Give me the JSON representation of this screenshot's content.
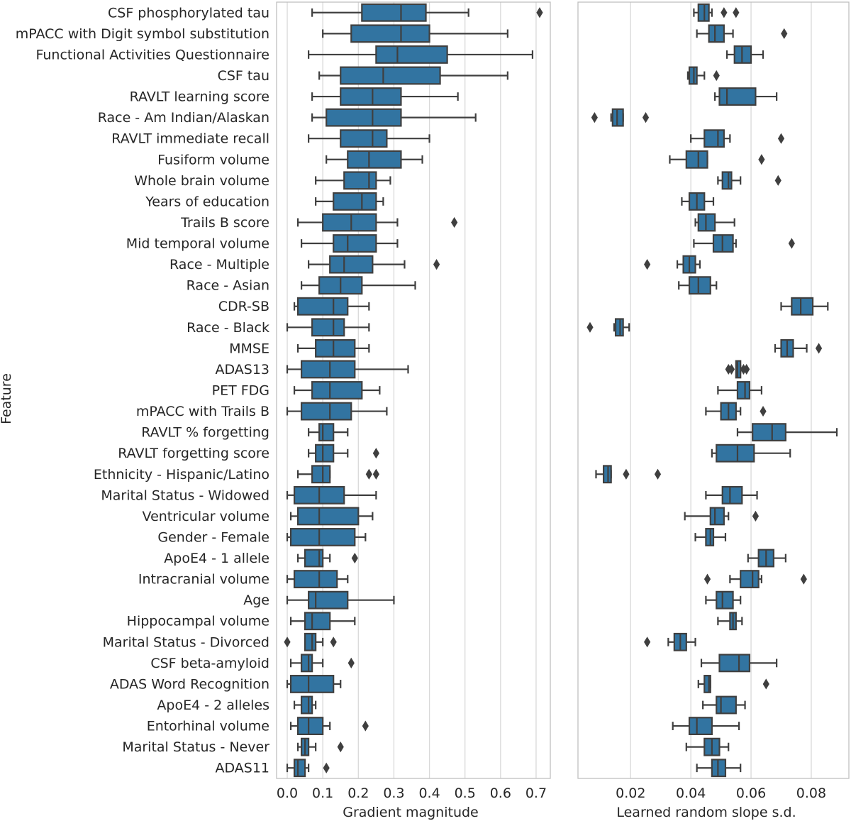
{
  "chart_data": {
    "type": "box",
    "ylabel": "Feature",
    "features": [
      "CSF phosphorylated tau",
      "mPACC with Digit symbol substitution",
      "Functional Activities Questionnaire",
      "CSF tau",
      "RAVLT learning score",
      "Race - Am Indian/Alaskan",
      "RAVLT immediate recall",
      "Fusiform volume",
      "Whole brain volume",
      "Years of education",
      "Trails B score",
      "Mid temporal volume",
      "Race - Multiple",
      "Race - Asian",
      "CDR-SB",
      "Race - Black",
      "MMSE",
      "ADAS13",
      "PET FDG",
      "mPACC with Trails B",
      "RAVLT % forgetting",
      "RAVLT forgetting score",
      "Ethnicity - Hispanic/Latino",
      "Marital Status - Widowed",
      "Ventricular volume",
      "Gender - Female",
      "ApoE4 - 1 allele",
      "Intracranial volume",
      "Age",
      "Hippocampal volume",
      "Marital Status - Divorced",
      "CSF beta-amyloid",
      "ADAS Word Recognition",
      "ApoE4 - 2 alleles",
      "Entorhinal volume",
      "Marital Status - Never",
      "ADAS11"
    ],
    "panels": [
      {
        "name": "gradient",
        "xlabel": "Gradient magnitude",
        "xlim": [
          -0.03,
          0.74
        ],
        "xticks": [
          0.0,
          0.1,
          0.2,
          0.3,
          0.4,
          0.5,
          0.6,
          0.7
        ],
        "xtick_labels": [
          "0.0",
          "0.1",
          "0.2",
          "0.3",
          "0.4",
          "0.5",
          "0.6",
          "0.7"
        ],
        "boxes": [
          {
            "wlo": 0.07,
            "q1": 0.21,
            "med": 0.32,
            "q3": 0.39,
            "whi": 0.51,
            "out": [
              0.71
            ]
          },
          {
            "wlo": 0.1,
            "q1": 0.18,
            "med": 0.32,
            "q3": 0.4,
            "whi": 0.62,
            "out": []
          },
          {
            "wlo": 0.06,
            "q1": 0.25,
            "med": 0.31,
            "q3": 0.45,
            "whi": 0.69,
            "out": []
          },
          {
            "wlo": 0.09,
            "q1": 0.15,
            "med": 0.27,
            "q3": 0.43,
            "whi": 0.62,
            "out": []
          },
          {
            "wlo": 0.07,
            "q1": 0.15,
            "med": 0.24,
            "q3": 0.32,
            "whi": 0.48,
            "out": []
          },
          {
            "wlo": 0.07,
            "q1": 0.11,
            "med": 0.24,
            "q3": 0.32,
            "whi": 0.53,
            "out": []
          },
          {
            "wlo": 0.06,
            "q1": 0.15,
            "med": 0.24,
            "q3": 0.28,
            "whi": 0.4,
            "out": []
          },
          {
            "wlo": 0.11,
            "q1": 0.17,
            "med": 0.23,
            "q3": 0.32,
            "whi": 0.38,
            "out": []
          },
          {
            "wlo": 0.08,
            "q1": 0.16,
            "med": 0.23,
            "q3": 0.25,
            "whi": 0.29,
            "out": []
          },
          {
            "wlo": 0.08,
            "q1": 0.13,
            "med": 0.21,
            "q3": 0.25,
            "whi": 0.27,
            "out": []
          },
          {
            "wlo": 0.03,
            "q1": 0.1,
            "med": 0.18,
            "q3": 0.25,
            "whi": 0.31,
            "out": [
              0.47
            ]
          },
          {
            "wlo": 0.04,
            "q1": 0.13,
            "med": 0.17,
            "q3": 0.25,
            "whi": 0.31,
            "out": []
          },
          {
            "wlo": 0.06,
            "q1": 0.12,
            "med": 0.16,
            "q3": 0.24,
            "whi": 0.33,
            "out": [
              0.42
            ]
          },
          {
            "wlo": 0.04,
            "q1": 0.09,
            "med": 0.15,
            "q3": 0.21,
            "whi": 0.36,
            "out": []
          },
          {
            "wlo": 0.02,
            "q1": 0.03,
            "med": 0.13,
            "q3": 0.17,
            "whi": 0.23,
            "out": []
          },
          {
            "wlo": 0.0,
            "q1": 0.07,
            "med": 0.13,
            "q3": 0.16,
            "whi": 0.23,
            "out": []
          },
          {
            "wlo": 0.03,
            "q1": 0.08,
            "med": 0.13,
            "q3": 0.19,
            "whi": 0.23,
            "out": []
          },
          {
            "wlo": 0.0,
            "q1": 0.04,
            "med": 0.12,
            "q3": 0.19,
            "whi": 0.34,
            "out": []
          },
          {
            "wlo": 0.02,
            "q1": 0.07,
            "med": 0.12,
            "q3": 0.21,
            "whi": 0.26,
            "out": []
          },
          {
            "wlo": 0.0,
            "q1": 0.04,
            "med": 0.12,
            "q3": 0.18,
            "whi": 0.28,
            "out": []
          },
          {
            "wlo": 0.06,
            "q1": 0.09,
            "med": 0.1,
            "q3": 0.13,
            "whi": 0.17,
            "out": []
          },
          {
            "wlo": 0.06,
            "q1": 0.08,
            "med": 0.1,
            "q3": 0.13,
            "whi": 0.17,
            "out": [
              0.25
            ]
          },
          {
            "wlo": 0.03,
            "q1": 0.07,
            "med": 0.1,
            "q3": 0.12,
            "whi": 0.12,
            "out": [
              0.23,
              0.25
            ]
          },
          {
            "wlo": 0.0,
            "q1": 0.02,
            "med": 0.09,
            "q3": 0.16,
            "whi": 0.25,
            "out": []
          },
          {
            "wlo": 0.01,
            "q1": 0.03,
            "med": 0.09,
            "q3": 0.2,
            "whi": 0.24,
            "out": []
          },
          {
            "wlo": 0.0,
            "q1": 0.01,
            "med": 0.09,
            "q3": 0.19,
            "whi": 0.22,
            "out": []
          },
          {
            "wlo": 0.03,
            "q1": 0.05,
            "med": 0.09,
            "q3": 0.1,
            "whi": 0.12,
            "out": [
              0.19
            ]
          },
          {
            "wlo": 0.0,
            "q1": 0.02,
            "med": 0.09,
            "q3": 0.14,
            "whi": 0.17,
            "out": []
          },
          {
            "wlo": 0.0,
            "q1": 0.06,
            "med": 0.08,
            "q3": 0.17,
            "whi": 0.3,
            "out": []
          },
          {
            "wlo": 0.01,
            "q1": 0.05,
            "med": 0.07,
            "q3": 0.12,
            "whi": 0.19,
            "out": []
          },
          {
            "wlo": 0.05,
            "q1": 0.05,
            "med": 0.07,
            "q3": 0.08,
            "whi": 0.1,
            "out": [
              0.0,
              0.13
            ]
          },
          {
            "wlo": 0.01,
            "q1": 0.04,
            "med": 0.06,
            "q3": 0.07,
            "whi": 0.1,
            "out": [
              0.18
            ]
          },
          {
            "wlo": 0.0,
            "q1": 0.01,
            "med": 0.06,
            "q3": 0.13,
            "whi": 0.15,
            "out": []
          },
          {
            "wlo": 0.02,
            "q1": 0.04,
            "med": 0.06,
            "q3": 0.07,
            "whi": 0.08,
            "out": []
          },
          {
            "wlo": 0.01,
            "q1": 0.03,
            "med": 0.06,
            "q3": 0.1,
            "whi": 0.12,
            "out": [
              0.22
            ]
          },
          {
            "wlo": 0.03,
            "q1": 0.04,
            "med": 0.05,
            "q3": 0.06,
            "whi": 0.08,
            "out": [
              0.15
            ]
          },
          {
            "wlo": 0.0,
            "q1": 0.02,
            "med": 0.03,
            "q3": 0.05,
            "whi": 0.06,
            "out": [
              0.11
            ]
          }
        ]
      },
      {
        "name": "slope",
        "xlabel": "Learned random slope s.d.",
        "xlim": [
          0.0025,
          0.0925
        ],
        "xticks": [
          0.02,
          0.04,
          0.06,
          0.08
        ],
        "xtick_labels": [
          "0.02",
          "0.04",
          "0.06",
          "0.08"
        ],
        "boxes": [
          {
            "wlo": 0.041,
            "q1": 0.0425,
            "med": 0.0445,
            "q3": 0.046,
            "whi": 0.047,
            "out": [
              0.051,
              0.055
            ]
          },
          {
            "wlo": 0.042,
            "q1": 0.046,
            "med": 0.048,
            "q3": 0.051,
            "whi": 0.054,
            "out": [
              0.071
            ]
          },
          {
            "wlo": 0.052,
            "q1": 0.0545,
            "med": 0.057,
            "q3": 0.06,
            "whi": 0.064,
            "out": []
          },
          {
            "wlo": 0.039,
            "q1": 0.0395,
            "med": 0.041,
            "q3": 0.042,
            "whi": 0.0445,
            "out": [
              0.0485
            ]
          },
          {
            "wlo": 0.048,
            "q1": 0.0495,
            "med": 0.052,
            "q3": 0.0615,
            "whi": 0.0685,
            "out": []
          },
          {
            "wlo": 0.0135,
            "q1": 0.014,
            "med": 0.0155,
            "q3": 0.0175,
            "whi": 0.0175,
            "out": [
              0.008,
              0.025
            ]
          },
          {
            "wlo": 0.04,
            "q1": 0.0445,
            "med": 0.049,
            "q3": 0.051,
            "whi": 0.053,
            "out": [
              0.07
            ]
          },
          {
            "wlo": 0.033,
            "q1": 0.0385,
            "med": 0.0425,
            "q3": 0.0455,
            "whi": 0.0455,
            "out": [
              0.0635
            ]
          },
          {
            "wlo": 0.049,
            "q1": 0.0505,
            "med": 0.0525,
            "q3": 0.0535,
            "whi": 0.0565,
            "out": [
              0.069
            ]
          },
          {
            "wlo": 0.037,
            "q1": 0.0395,
            "med": 0.042,
            "q3": 0.0445,
            "whi": 0.0475,
            "out": []
          },
          {
            "wlo": 0.0415,
            "q1": 0.0425,
            "med": 0.045,
            "q3": 0.048,
            "whi": 0.0545,
            "out": []
          },
          {
            "wlo": 0.041,
            "q1": 0.0475,
            "med": 0.0505,
            "q3": 0.054,
            "whi": 0.055,
            "out": [
              0.0735
            ]
          },
          {
            "wlo": 0.0355,
            "q1": 0.0375,
            "med": 0.0395,
            "q3": 0.0415,
            "whi": 0.043,
            "out": [
              0.0255
            ]
          },
          {
            "wlo": 0.036,
            "q1": 0.0395,
            "med": 0.0425,
            "q3": 0.0465,
            "whi": 0.0485,
            "out": []
          },
          {
            "wlo": 0.07,
            "q1": 0.0735,
            "med": 0.0765,
            "q3": 0.0805,
            "whi": 0.0855,
            "out": []
          },
          {
            "wlo": 0.0145,
            "q1": 0.015,
            "med": 0.0165,
            "q3": 0.0175,
            "whi": 0.0195,
            "out": [
              0.0065
            ]
          },
          {
            "wlo": 0.068,
            "q1": 0.07,
            "med": 0.072,
            "q3": 0.074,
            "whi": 0.0785,
            "out": [
              0.0825
            ]
          },
          {
            "wlo": 0.0555,
            "q1": 0.055,
            "med": 0.0555,
            "q3": 0.0565,
            "whi": 0.0565,
            "out": [
              0.0525,
              0.0535,
              0.0575,
              0.0585
            ]
          },
          {
            "wlo": 0.049,
            "q1": 0.0555,
            "med": 0.058,
            "q3": 0.0595,
            "whi": 0.0635,
            "out": []
          },
          {
            "wlo": 0.045,
            "q1": 0.05,
            "med": 0.0525,
            "q3": 0.055,
            "whi": 0.0565,
            "out": [
              0.064
            ]
          },
          {
            "wlo": 0.0555,
            "q1": 0.0605,
            "med": 0.067,
            "q3": 0.0715,
            "whi": 0.0885,
            "out": []
          },
          {
            "wlo": 0.047,
            "q1": 0.0485,
            "med": 0.0555,
            "q3": 0.061,
            "whi": 0.073,
            "out": []
          },
          {
            "wlo": 0.0085,
            "q1": 0.011,
            "med": 0.0125,
            "q3": 0.0135,
            "whi": 0.0135,
            "out": [
              0.0185,
              0.029
            ]
          },
          {
            "wlo": 0.045,
            "q1": 0.0505,
            "med": 0.053,
            "q3": 0.057,
            "whi": 0.062,
            "out": []
          },
          {
            "wlo": 0.038,
            "q1": 0.0465,
            "med": 0.048,
            "q3": 0.051,
            "whi": 0.0525,
            "out": [
              0.0615
            ]
          },
          {
            "wlo": 0.0415,
            "q1": 0.045,
            "med": 0.0465,
            "q3": 0.0475,
            "whi": 0.0515,
            "out": []
          },
          {
            "wlo": 0.059,
            "q1": 0.0625,
            "med": 0.065,
            "q3": 0.0675,
            "whi": 0.0715,
            "out": []
          },
          {
            "wlo": 0.053,
            "q1": 0.0565,
            "med": 0.0605,
            "q3": 0.0625,
            "whi": 0.0635,
            "out": [
              0.0455,
              0.0775
            ]
          },
          {
            "wlo": 0.045,
            "q1": 0.0485,
            "med": 0.0505,
            "q3": 0.054,
            "whi": 0.0565,
            "out": []
          },
          {
            "wlo": 0.049,
            "q1": 0.053,
            "med": 0.054,
            "q3": 0.055,
            "whi": 0.057,
            "out": []
          },
          {
            "wlo": 0.0325,
            "q1": 0.0345,
            "med": 0.0365,
            "q3": 0.0385,
            "whi": 0.0415,
            "out": [
              0.0255
            ]
          },
          {
            "wlo": 0.0435,
            "q1": 0.0495,
            "med": 0.056,
            "q3": 0.0595,
            "whi": 0.0685,
            "out": []
          },
          {
            "wlo": 0.0425,
            "q1": 0.0445,
            "med": 0.046,
            "q3": 0.0465,
            "whi": 0.0465,
            "out": [
              0.065
            ]
          },
          {
            "wlo": 0.044,
            "q1": 0.0485,
            "med": 0.05,
            "q3": 0.055,
            "whi": 0.058,
            "out": []
          },
          {
            "wlo": 0.034,
            "q1": 0.0395,
            "med": 0.042,
            "q3": 0.047,
            "whi": 0.056,
            "out": []
          },
          {
            "wlo": 0.0385,
            "q1": 0.0445,
            "med": 0.047,
            "q3": 0.0495,
            "whi": 0.0525,
            "out": []
          },
          {
            "wlo": 0.042,
            "q1": 0.047,
            "med": 0.049,
            "q3": 0.0515,
            "whi": 0.0565,
            "out": []
          }
        ]
      }
    ]
  },
  "style": {
    "box_fill": "#3274a1",
    "line_color": "#3f3f3f",
    "grid_color": "#d9d9d9",
    "frame_color": "#bfbfbf",
    "text_color": "#262626"
  }
}
